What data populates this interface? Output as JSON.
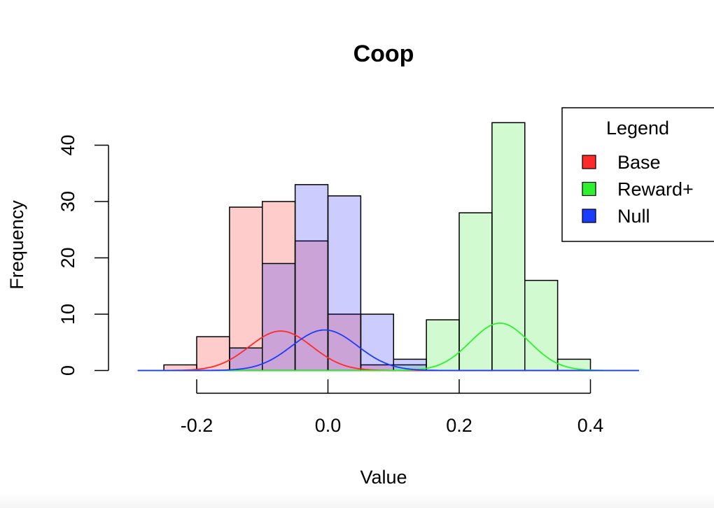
{
  "chart_data": {
    "type": "bar",
    "title": "Coop",
    "xlabel": "Value",
    "ylabel": "Frequency",
    "xlim": [
      -0.3,
      0.48
    ],
    "ylim": [
      0,
      47
    ],
    "x_ticks": [
      -0.2,
      0.0,
      0.2,
      0.4
    ],
    "x_tick_labels": [
      "-0.2",
      "0.0",
      "0.2",
      "0.4"
    ],
    "y_ticks": [
      0,
      10,
      20,
      30,
      40
    ],
    "y_tick_labels": [
      "0",
      "10",
      "20",
      "30",
      "40"
    ],
    "bin_width": 0.05,
    "grid": false,
    "legend": {
      "title": "Legend",
      "position": "top-right",
      "entries": [
        {
          "label": "Base",
          "color": "#ff2a2a"
        },
        {
          "label": "Reward+",
          "color": "#2ef12e"
        },
        {
          "label": "Null",
          "color": "#1a3cff"
        }
      ]
    },
    "series": [
      {
        "key": "base",
        "fill": "rgba(255,0,0,0.2)",
        "curve_color": "#ff2a2a",
        "bins": [
          {
            "x0": -0.25,
            "x1": -0.2,
            "count": 1
          },
          {
            "x0": -0.2,
            "x1": -0.15,
            "count": 6
          },
          {
            "x0": -0.15,
            "x1": -0.1,
            "count": 29
          },
          {
            "x0": -0.1,
            "x1": -0.05,
            "count": 30
          },
          {
            "x0": -0.05,
            "x1": 0.0,
            "count": 23
          },
          {
            "x0": 0.0,
            "x1": 0.05,
            "count": 10
          },
          {
            "x0": 0.05,
            "x1": 0.1,
            "count": 1
          }
        ],
        "density_curve": {
          "mean": -0.072,
          "sd": 0.048,
          "peak": 7.0
        }
      },
      {
        "key": "reward_plus",
        "fill": "rgba(0,230,0,0.18)",
        "curve_color": "#2ef12e",
        "bins": [
          {
            "x0": 0.1,
            "x1": 0.15,
            "count": 1
          },
          {
            "x0": 0.15,
            "x1": 0.2,
            "count": 9
          },
          {
            "x0": 0.2,
            "x1": 0.25,
            "count": 28
          },
          {
            "x0": 0.25,
            "x1": 0.3,
            "count": 44
          },
          {
            "x0": 0.3,
            "x1": 0.35,
            "count": 16
          },
          {
            "x0": 0.35,
            "x1": 0.4,
            "count": 2
          }
        ],
        "density_curve": {
          "mean": 0.262,
          "sd": 0.045,
          "peak": 8.4
        }
      },
      {
        "key": "null",
        "fill": "rgba(0,0,255,0.2)",
        "curve_color": "#1a3cff",
        "bins": [
          {
            "x0": -0.15,
            "x1": -0.1,
            "count": 4
          },
          {
            "x0": -0.1,
            "x1": -0.05,
            "count": 19
          },
          {
            "x0": -0.05,
            "x1": 0.0,
            "count": 33
          },
          {
            "x0": 0.0,
            "x1": 0.05,
            "count": 31
          },
          {
            "x0": 0.05,
            "x1": 0.1,
            "count": 10
          },
          {
            "x0": 0.1,
            "x1": 0.15,
            "count": 2
          }
        ],
        "density_curve": {
          "mean": -0.005,
          "sd": 0.05,
          "peak": 7.2
        }
      }
    ]
  }
}
